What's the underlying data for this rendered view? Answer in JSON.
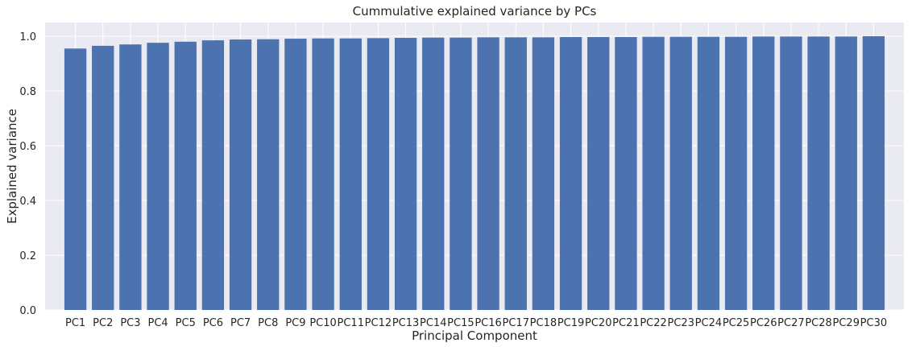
{
  "chart_data": {
    "type": "bar",
    "title": "Cummulative explained variance by PCs",
    "xlabel": "Principal Component",
    "ylabel": "Explained variance",
    "ylim": [
      0,
      1.05
    ],
    "yticks": [
      "0.0",
      "0.2",
      "0.4",
      "0.6",
      "0.8",
      "1.0"
    ],
    "grid": true,
    "colors": {
      "bar": "#4c72b0",
      "plot_bg": "#eaeaf2",
      "grid": "#ffffff"
    },
    "categories": [
      "PC1",
      "PC2",
      "PC3",
      "PC4",
      "PC5",
      "PC6",
      "PC7",
      "PC8",
      "PC9",
      "PC10",
      "PC11",
      "PC12",
      "PC13",
      "PC14",
      "PC15",
      "PC16",
      "PC17",
      "PC18",
      "PC19",
      "PC20",
      "PC21",
      "PC22",
      "PC23",
      "PC24",
      "PC25",
      "PC26",
      "PC27",
      "PC28",
      "PC29",
      "PC30"
    ],
    "values": [
      0.955,
      0.965,
      0.97,
      0.976,
      0.98,
      0.985,
      0.988,
      0.989,
      0.991,
      0.992,
      0.992,
      0.993,
      0.994,
      0.995,
      0.995,
      0.996,
      0.996,
      0.996,
      0.997,
      0.997,
      0.997,
      0.998,
      0.998,
      0.998,
      0.998,
      0.999,
      0.999,
      0.999,
      0.999,
      1.0
    ]
  }
}
